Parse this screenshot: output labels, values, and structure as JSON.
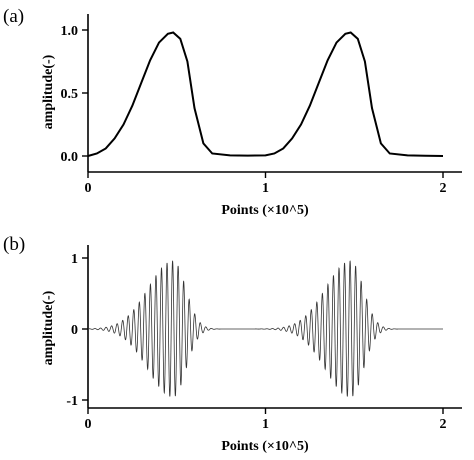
{
  "chart_data": [
    {
      "panel_label": "(a)",
      "type": "line",
      "xlabel": "Points (×10^5)",
      "ylabel": "amplitude(-)",
      "xlim": [
        0,
        2
      ],
      "ylim": [
        0,
        1
      ],
      "x_ticks": [
        "0",
        "1",
        "2"
      ],
      "y_ticks": [
        "0.0",
        "0.5",
        "1.0"
      ],
      "series": [
        {
          "x": [
            0,
            0.05,
            0.1,
            0.15,
            0.2,
            0.25,
            0.3,
            0.35,
            0.4,
            0.45,
            0.48,
            0.52,
            0.56,
            0.6,
            0.65,
            0.7,
            0.8,
            0.9,
            1.0,
            1.05,
            1.1,
            1.15,
            1.2,
            1.25,
            1.3,
            1.35,
            1.4,
            1.45,
            1.48,
            1.52,
            1.56,
            1.6,
            1.65,
            1.7,
            1.8,
            1.9,
            2.0
          ],
          "y": [
            0,
            0.02,
            0.06,
            0.14,
            0.25,
            0.4,
            0.58,
            0.76,
            0.9,
            0.97,
            0.98,
            0.93,
            0.75,
            0.38,
            0.1,
            0.02,
            0.005,
            0.003,
            0.005,
            0.02,
            0.06,
            0.14,
            0.25,
            0.4,
            0.58,
            0.76,
            0.9,
            0.97,
            0.98,
            0.93,
            0.75,
            0.38,
            0.1,
            0.02,
            0.005,
            0.002,
            0
          ]
        }
      ]
    },
    {
      "panel_label": "(b)",
      "type": "line",
      "xlabel": "Points (×10^5)",
      "ylabel": "amplitude(-)",
      "xlim": [
        0,
        2
      ],
      "ylim": [
        -1,
        1
      ],
      "x_ticks": [
        "0",
        "1",
        "2"
      ],
      "y_ticks": [
        "-1",
        "0",
        "1"
      ],
      "envelope_peaks": [
        0.48,
        1.48
      ],
      "peak_amplitude": 0.96,
      "cycles_per_unit_x": 32
    }
  ]
}
